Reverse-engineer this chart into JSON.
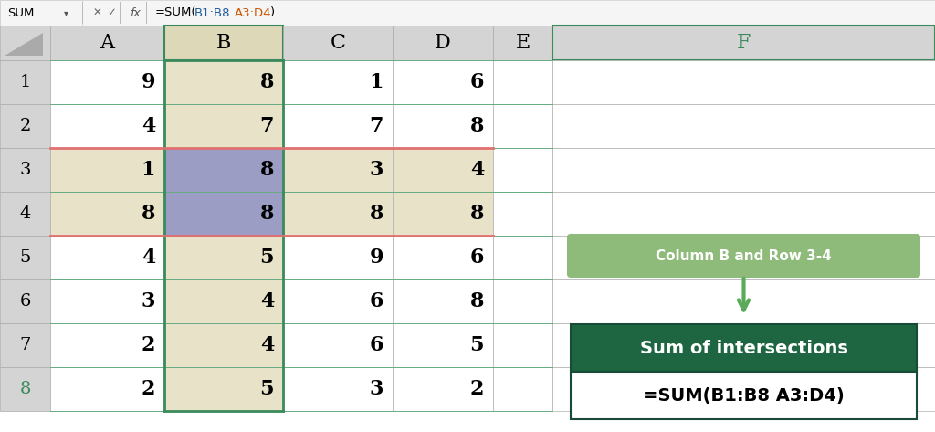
{
  "title_bar": "SUM",
  "formula_bar_text": "=SUM(B1:B8 A3:D4)",
  "col_headers": [
    "A",
    "B",
    "C",
    "D",
    "E",
    "F"
  ],
  "row_headers": [
    "1",
    "2",
    "3",
    "4",
    "5",
    "6",
    "7",
    "8"
  ],
  "cell_data": [
    [
      9,
      8,
      1,
      6
    ],
    [
      4,
      7,
      7,
      8
    ],
    [
      1,
      8,
      3,
      4
    ],
    [
      8,
      8,
      8,
      8
    ],
    [
      4,
      5,
      9,
      6
    ],
    [
      3,
      4,
      6,
      8
    ],
    [
      2,
      4,
      6,
      5
    ],
    [
      2,
      5,
      3,
      2
    ]
  ],
  "col_B_bg": "#e8e2c8",
  "row_34_bg": "#e8e2c8",
  "intersection_bg": "#9b9dc4",
  "header_bg": "#d4d4d4",
  "col_F_header_color": "#3a8a5c",
  "grid_color_green": "#3a8a5c",
  "row_border_color": "#e07070",
  "label_box_bg": "#8fbb7a",
  "label_text_color": "#ffffff",
  "result_box_bg": "#1e6641",
  "result_text_color": "#ffffff",
  "formula_result_bg": "#ffffff",
  "formula_result_color": "#000000",
  "arrow_color": "#5aaa5a",
  "label_text": "Column B and Row 3-4",
  "result_title": "Sum of intersections",
  "result_formula": "=SUM(B1:B8 A3:D4)",
  "background_color": "#ffffff",
  "top_bar_bg": "#f5f5f5",
  "cell_border_color": "#b0b0b0",
  "row8_number_color": "#3a8a5c",
  "formula_b1b8_color": "#1f5c9e",
  "formula_a3d4_color": "#cc5500"
}
